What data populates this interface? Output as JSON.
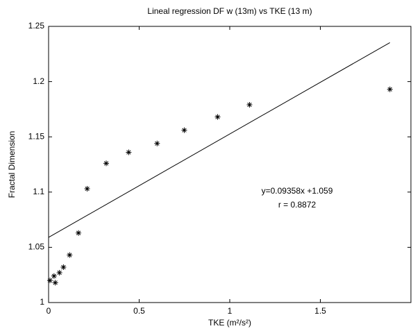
{
  "chart_data": {
    "type": "scatter",
    "title": "Lineal regression DF w (13m) vs TKE (13 m)",
    "x_label": "TKE (m²/s²)",
    "y_label": "Fractal Dimension",
    "annotations": [
      "y=0.09358x +1.059",
      "r = 0.8872"
    ],
    "series": [
      {
        "type": "scatter",
        "color": "#000000",
        "x": [
          0.0075,
          0.03,
          0.037,
          0.06,
          0.082,
          0.116,
          0.165,
          0.213,
          0.318,
          0.442,
          0.599,
          0.749,
          0.933,
          1.109,
          1.884
        ],
        "values": [
          1.02,
          1.024,
          1.018,
          1.027,
          1.032,
          1.043,
          1.063,
          1.103,
          1.126,
          1.136,
          1.144,
          1.156,
          1.168,
          1.179,
          1.193
        ]
      },
      {
        "type": "line",
        "color": "#000000",
        "x": [
          0,
          1.884
        ],
        "values": [
          1.059,
          1.2353
        ]
      }
    ],
    "xlim": [
      0,
      2
    ],
    "ylim": [
      1,
      1.25
    ],
    "xticks": [
      0,
      0.5,
      1,
      1.5
    ],
    "yticks": [
      1,
      1.05,
      1.1,
      1.15,
      1.2,
      1.25
    ],
    "grid": false
  }
}
